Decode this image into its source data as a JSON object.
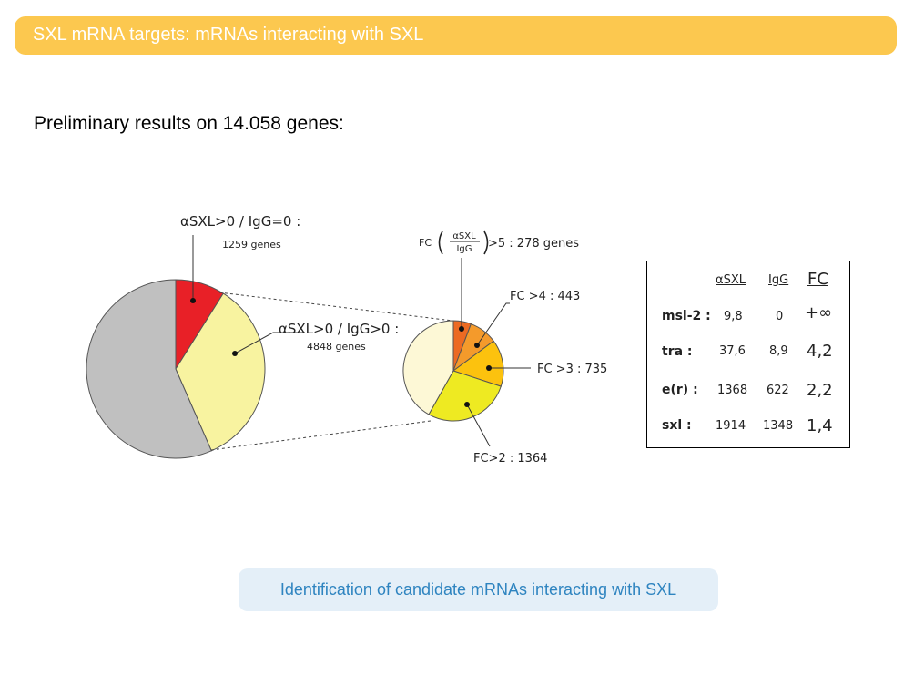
{
  "header": {
    "title": "SXL mRNA targets: mRNAs interacting with SXL"
  },
  "subtitle": "Preliminary results on 14.058 genes:",
  "left_pie": {
    "label_zero_igg_line1": "αSXL>0 / IgG=0 :",
    "label_zero_igg_line2": "1259 genes",
    "label_pos_igg_line1": "αSXL>0 / IgG>0 :",
    "label_pos_igg_line2": "4848 genes",
    "slices": [
      {
        "name": "αSXL>0 / IgG=0",
        "genes": 1259,
        "color": "#e82027"
      },
      {
        "name": "αSXL>0 / IgG>0",
        "genes": 4848,
        "color": "#f8f3a0"
      },
      {
        "name": "other",
        "genes": 7951,
        "color": "#c0c0c0"
      }
    ]
  },
  "right_pie": {
    "fc_prefix": "FC",
    "fc_numerator": "αSXL",
    "fc_denominator": "IgG",
    "fc5_label": ">5 : 278 genes",
    "fc4_label": "FC >4 : 443",
    "fc3_label": "FC >3 : 735",
    "fc2_label": "FC>2 : 1364",
    "slices": [
      {
        "name": "FC>5",
        "genes": 278,
        "color": "#ec6a22"
      },
      {
        "name": "FC>4",
        "genes": 443,
        "color": "#f49a2b"
      },
      {
        "name": "FC>3",
        "genes": 735,
        "color": "#fcc20e"
      },
      {
        "name": "FC>2",
        "genes": 1364,
        "color": "#eeea22"
      },
      {
        "name": "rest",
        "genes": 2028,
        "color": "#fdf8d6"
      }
    ]
  },
  "table": {
    "headers": {
      "asxl": "αSXL",
      "igg": "IgG",
      "fc": "FC"
    },
    "rows": [
      {
        "gene": "msl-2 :",
        "asxl": "9,8",
        "igg": "0",
        "fc": "+∞",
        "fc_color": "#e01515"
      },
      {
        "gene": "tra :",
        "asxl": "37,6",
        "igg": "8,9",
        "fc": "4,2",
        "fc_color": "#e01515"
      },
      {
        "gene": "e(r) :",
        "asxl": "1368",
        "igg": "622",
        "fc": "2,2",
        "fc_color": "#e01515"
      },
      {
        "gene": "sxl :",
        "asxl": "1914",
        "igg": "1348",
        "fc": "1,4",
        "fc_color": "#111111"
      }
    ]
  },
  "caption": "Identification of candidate mRNAs interacting with SXL"
}
